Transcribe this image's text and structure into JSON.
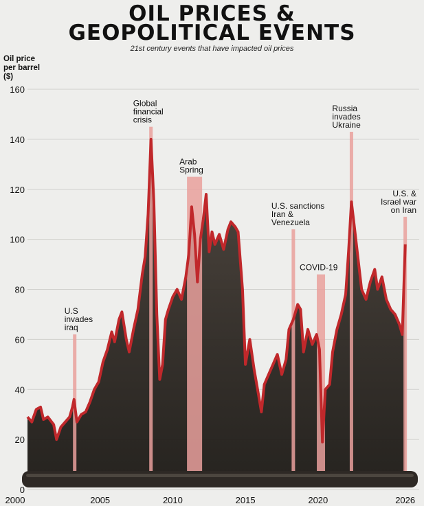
{
  "title_line1": "OIL PRICES &",
  "title_line2": "GEOPOLITICAL EVENTS",
  "subtitle": "21st century events that have impacted oil prices",
  "ylabel_line1": "Oil price",
  "ylabel_line2": "per barrel",
  "ylabel_line3": "($)",
  "colors": {
    "line": "#c0282b",
    "bar": "#e9a09c",
    "barrel": "#2e2925"
  },
  "chart_data": {
    "type": "line",
    "title": "OIL PRICES & GEOPOLITICAL EVENTS",
    "subtitle": "21st century events that have impacted oil prices",
    "ylabel": "Oil price per barrel ($)",
    "xlabel": "",
    "xlim": [
      2000,
      2026.3
    ],
    "ylim": [
      0,
      160
    ],
    "xticks": [
      2000,
      2005,
      2010,
      2015,
      2020,
      2026
    ],
    "yticks": [
      0,
      20,
      40,
      60,
      80,
      100,
      120,
      140,
      160
    ],
    "grid": true,
    "series": [
      {
        "values": [
          [
            2000.0,
            29
          ],
          [
            2000.3,
            27
          ],
          [
            2000.6,
            32
          ],
          [
            2000.9,
            33
          ],
          [
            2001.1,
            28
          ],
          [
            2001.4,
            29
          ],
          [
            2001.8,
            26
          ],
          [
            2002.0,
            20
          ],
          [
            2002.3,
            25
          ],
          [
            2002.6,
            27
          ],
          [
            2002.9,
            29
          ],
          [
            2003.1,
            33
          ],
          [
            2003.2,
            36
          ],
          [
            2003.4,
            27
          ],
          [
            2003.7,
            30
          ],
          [
            2004.0,
            31
          ],
          [
            2004.3,
            35
          ],
          [
            2004.6,
            40
          ],
          [
            2004.9,
            43
          ],
          [
            2005.2,
            51
          ],
          [
            2005.5,
            56
          ],
          [
            2005.8,
            63
          ],
          [
            2006.0,
            59
          ],
          [
            2006.3,
            68
          ],
          [
            2006.5,
            71
          ],
          [
            2006.8,
            60
          ],
          [
            2007.0,
            55
          ],
          [
            2007.3,
            64
          ],
          [
            2007.6,
            72
          ],
          [
            2007.9,
            86
          ],
          [
            2008.1,
            93
          ],
          [
            2008.3,
            110
          ],
          [
            2008.5,
            140
          ],
          [
            2008.7,
            115
          ],
          [
            2008.9,
            70
          ],
          [
            2009.1,
            44
          ],
          [
            2009.3,
            50
          ],
          [
            2009.5,
            68
          ],
          [
            2009.7,
            72
          ],
          [
            2010.0,
            77
          ],
          [
            2010.3,
            80
          ],
          [
            2010.6,
            76
          ],
          [
            2010.9,
            85
          ],
          [
            2011.1,
            94
          ],
          [
            2011.3,
            113
          ],
          [
            2011.5,
            102
          ],
          [
            2011.7,
            83
          ],
          [
            2011.9,
            100
          ],
          [
            2012.1,
            108
          ],
          [
            2012.3,
            118
          ],
          [
            2012.5,
            95
          ],
          [
            2012.7,
            103
          ],
          [
            2012.9,
            98
          ],
          [
            2013.2,
            102
          ],
          [
            2013.5,
            96
          ],
          [
            2013.8,
            104
          ],
          [
            2014.0,
            107
          ],
          [
            2014.3,
            105
          ],
          [
            2014.5,
            103
          ],
          [
            2014.8,
            80
          ],
          [
            2015.0,
            50
          ],
          [
            2015.3,
            60
          ],
          [
            2015.6,
            48
          ],
          [
            2015.9,
            38
          ],
          [
            2016.1,
            31
          ],
          [
            2016.3,
            42
          ],
          [
            2016.6,
            46
          ],
          [
            2016.9,
            50
          ],
          [
            2017.2,
            54
          ],
          [
            2017.5,
            46
          ],
          [
            2017.8,
            52
          ],
          [
            2018.0,
            64
          ],
          [
            2018.3,
            68
          ],
          [
            2018.6,
            74
          ],
          [
            2018.8,
            72
          ],
          [
            2019.0,
            55
          ],
          [
            2019.3,
            64
          ],
          [
            2019.6,
            58
          ],
          [
            2019.9,
            62
          ],
          [
            2020.1,
            56
          ],
          [
            2020.3,
            19
          ],
          [
            2020.5,
            40
          ],
          [
            2020.8,
            42
          ],
          [
            2021.0,
            55
          ],
          [
            2021.3,
            64
          ],
          [
            2021.6,
            70
          ],
          [
            2021.9,
            78
          ],
          [
            2022.1,
            95
          ],
          [
            2022.3,
            115
          ],
          [
            2022.5,
            105
          ],
          [
            2022.8,
            90
          ],
          [
            2023.0,
            80
          ],
          [
            2023.3,
            76
          ],
          [
            2023.6,
            83
          ],
          [
            2023.9,
            88
          ],
          [
            2024.1,
            80
          ],
          [
            2024.4,
            85
          ],
          [
            2024.7,
            76
          ],
          [
            2025.0,
            72
          ],
          [
            2025.3,
            70
          ],
          [
            2025.6,
            66
          ],
          [
            2025.8,
            62
          ],
          [
            2026.0,
            98
          ]
        ]
      }
    ],
    "events": [
      {
        "label_lines": [
          "U.S",
          "invades",
          "iraq"
        ],
        "x": 2003.25,
        "high": 62
      },
      {
        "label_lines": [
          "Global",
          "financial",
          "crisis"
        ],
        "x": 2008.5,
        "high": 145
      },
      {
        "label_lines": [
          "Arab",
          "Spring"
        ],
        "x": 2011.5,
        "high": 125
      },
      {
        "label_lines": [
          "U.S. sanctions",
          "Iran &",
          "Venezuela"
        ],
        "x": 2018.3,
        "high": 104
      },
      {
        "label_lines": [
          "COVID-19"
        ],
        "x": 2020.2,
        "high": 86
      },
      {
        "label_lines": [
          "Russia",
          "invades",
          "Ukraine"
        ],
        "x": 2022.3,
        "high": 143
      },
      {
        "label_lines": [
          "U.S. &",
          "Israel war",
          "on Iran"
        ],
        "x": 2026.0,
        "high": 109
      }
    ]
  }
}
